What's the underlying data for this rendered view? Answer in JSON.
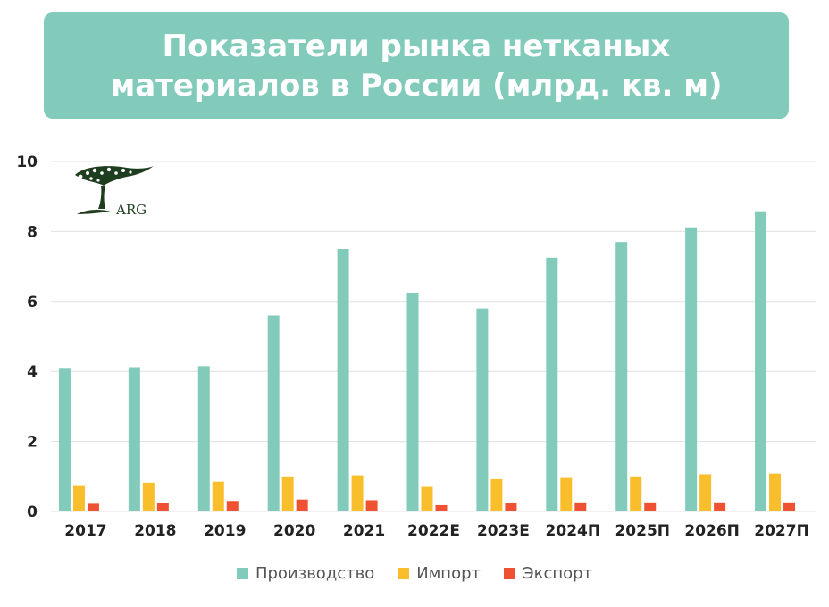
{
  "header": {
    "title_line1": "Показатели рынка нетканых",
    "title_line2": "материалов в России (млрд. кв. м)"
  },
  "logo": {
    "text": "ARG",
    "icon": "tree-icon"
  },
  "colors": {
    "title_bg": "#82cbbb",
    "production": "#82cbbb",
    "import": "#f8be2c",
    "export": "#ef5133",
    "grid": "#e0e0e0"
  },
  "chart_data": {
    "type": "bar",
    "title": "Показатели рынка нетканых материалов в России (млрд. кв. м)",
    "categories": [
      "2017",
      "2018",
      "2019",
      "2020",
      "2021",
      "2022E",
      "2023E",
      "2024П",
      "2025П",
      "2026П",
      "2027П"
    ],
    "series": [
      {
        "name": "Производство",
        "values": [
          4.1,
          4.12,
          4.15,
          5.6,
          7.5,
          6.25,
          5.8,
          7.25,
          7.7,
          8.12,
          8.58
        ]
      },
      {
        "name": "Импорт",
        "values": [
          0.75,
          0.82,
          0.85,
          1.0,
          1.03,
          0.7,
          0.92,
          0.98,
          1.0,
          1.06,
          1.08
        ]
      },
      {
        "name": "Экспорт",
        "values": [
          0.22,
          0.25,
          0.3,
          0.34,
          0.32,
          0.18,
          0.24,
          0.26,
          0.26,
          0.26,
          0.26
        ]
      }
    ],
    "ylim": [
      0,
      10
    ],
    "yticks": [
      0,
      2,
      4,
      6,
      8,
      10
    ],
    "grid": true,
    "legend": "bottom-center"
  }
}
